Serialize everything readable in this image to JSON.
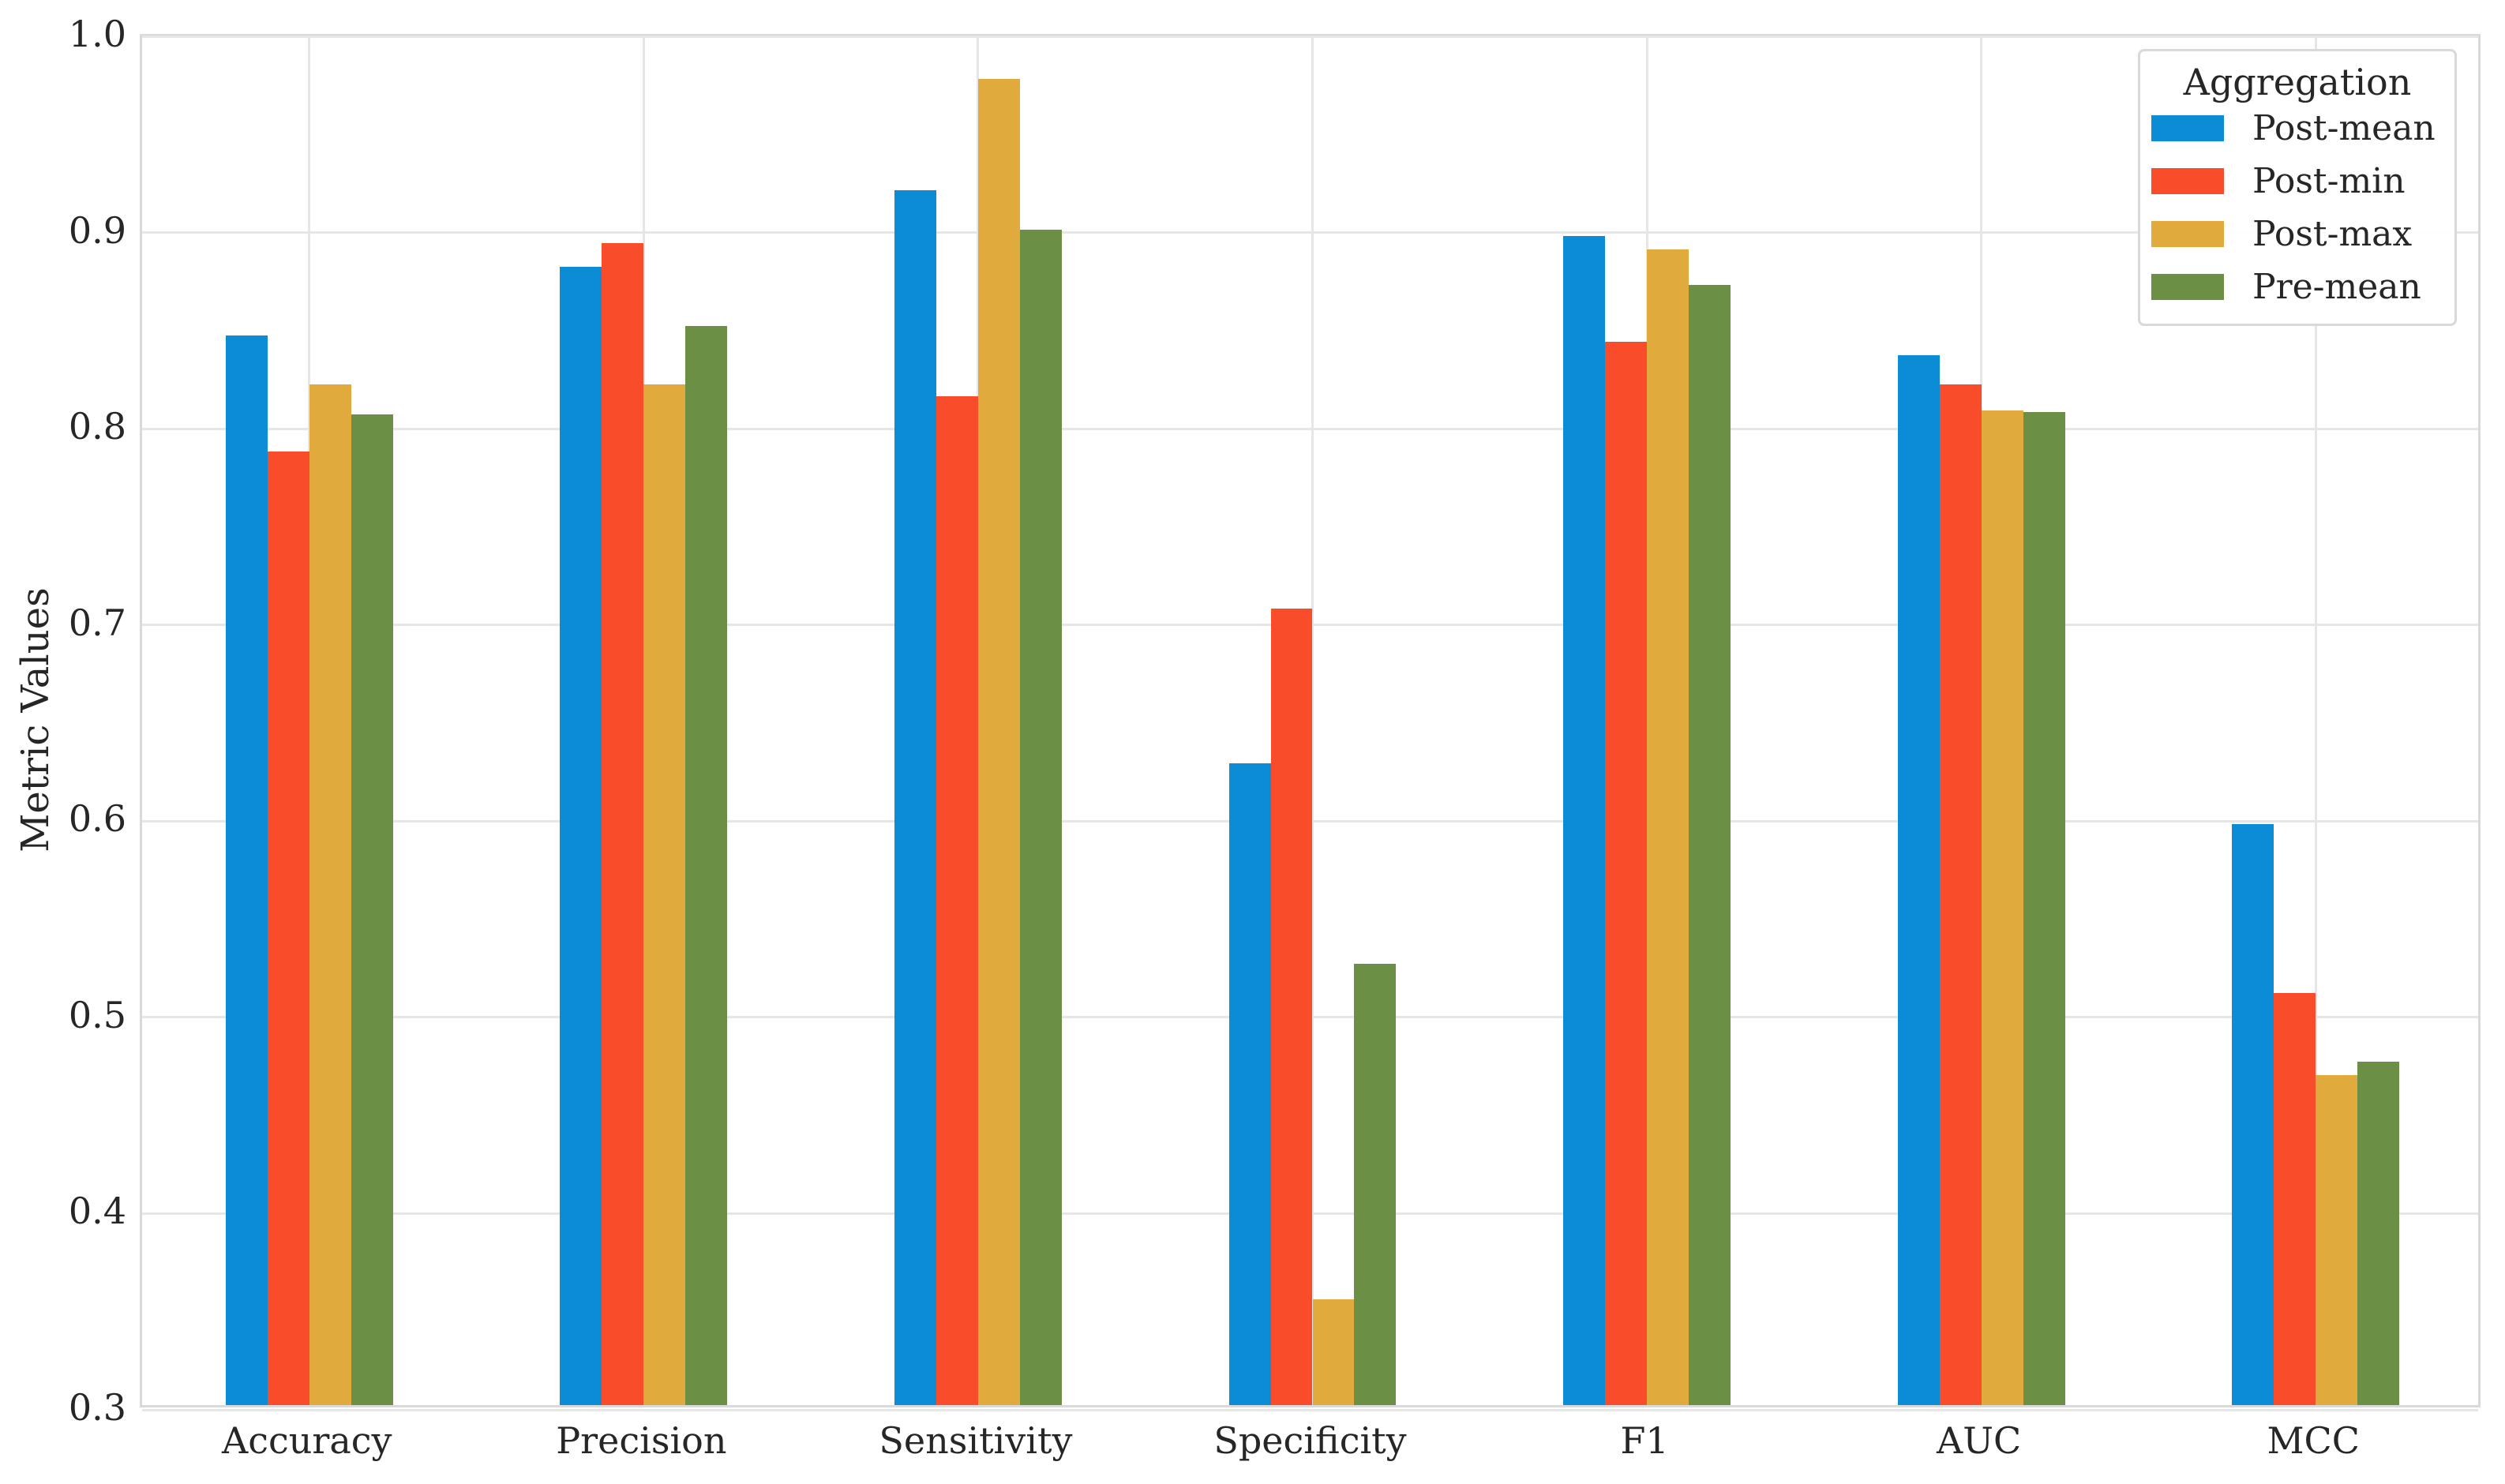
{
  "chart_data": {
    "type": "bar",
    "title": "",
    "xlabel": "",
    "ylabel": "Metric Values",
    "categories": [
      "Accuracy",
      "Precision",
      "Sensitivity",
      "Specificity",
      "F1",
      "AUC",
      "MCC"
    ],
    "series": [
      {
        "name": "Post-mean",
        "color": "#0d8cd6",
        "values": [
          0.845,
          0.88,
          0.919,
          0.627,
          0.896,
          0.835,
          0.596
        ]
      },
      {
        "name": "Post-min",
        "color": "#f94c2b",
        "values": [
          0.786,
          0.892,
          0.814,
          0.706,
          0.842,
          0.82,
          0.51
        ]
      },
      {
        "name": "Post-max",
        "color": "#e0ab3c",
        "values": [
          0.82,
          0.82,
          0.976,
          0.354,
          0.889,
          0.807,
          0.468
        ]
      },
      {
        "name": "Pre-mean",
        "color": "#6b8f44",
        "values": [
          0.805,
          0.85,
          0.899,
          0.525,
          0.871,
          0.806,
          0.475
        ]
      }
    ],
    "ylim": [
      0.3,
      1.0
    ],
    "yticks": [
      1.0,
      0.9,
      0.8,
      0.7,
      0.6,
      0.5,
      0.4,
      0.3
    ],
    "grid": true,
    "legend": {
      "title": "Aggregation",
      "position": "upper-right"
    }
  },
  "colors": {
    "grid": "#e6e6e6",
    "spine": "#d9d9d9",
    "text": "#262626",
    "background": "#ffffff"
  }
}
